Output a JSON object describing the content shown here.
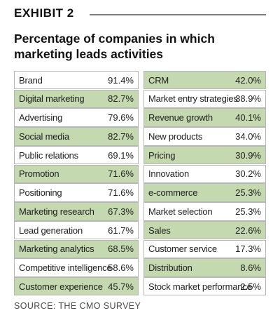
{
  "exhibit": "EXHIBIT 2",
  "source": "SOURCE: THE CMO SURVEY",
  "colors": {
    "shaded_row": "#c5d9b0",
    "border": "#b7b7b7",
    "rule": "#7d7d7d"
  },
  "chart_data": {
    "type": "table",
    "title": "Percentage of companies in which marketing leads activities",
    "columns": [
      {
        "rows": [
          {
            "label": "Brand",
            "value": "91.4%",
            "shaded": false
          },
          {
            "label": "Digital marketing",
            "value": "82.7%",
            "shaded": true
          },
          {
            "label": "Advertising",
            "value": "79.6%",
            "shaded": false
          },
          {
            "label": "Social media",
            "value": "82.7%",
            "shaded": true
          },
          {
            "label": "Public relations",
            "value": "69.1%",
            "shaded": false
          },
          {
            "label": "Promotion",
            "value": "71.6%",
            "shaded": true
          },
          {
            "label": "Positioning",
            "value": "71.6%",
            "shaded": false
          },
          {
            "label": "Marketing research",
            "value": "67.3%",
            "shaded": true
          },
          {
            "label": "Lead generation",
            "value": "61.7%",
            "shaded": false
          },
          {
            "label": "Marketing analytics",
            "value": "68.5%",
            "shaded": true
          },
          {
            "label": "Competitive intelligence",
            "value": "58.6%",
            "shaded": false
          },
          {
            "label": "Customer experience",
            "value": "45.7%",
            "shaded": true
          }
        ]
      },
      {
        "rows": [
          {
            "label": "CRM",
            "value": "42.0%",
            "shaded": true
          },
          {
            "label": "Market entry strategies",
            "value": "38.9%",
            "shaded": false
          },
          {
            "label": "Revenue growth",
            "value": "40.1%",
            "shaded": true
          },
          {
            "label": "New products",
            "value": "34.0%",
            "shaded": false
          },
          {
            "label": "Pricing",
            "value": "30.9%",
            "shaded": true
          },
          {
            "label": "Innovation",
            "value": "30.2%",
            "shaded": false
          },
          {
            "label": "e-commerce",
            "value": "25.3%",
            "shaded": true
          },
          {
            "label": "Market selection",
            "value": "25.3%",
            "shaded": false
          },
          {
            "label": "Sales",
            "value": "22.6%",
            "shaded": true
          },
          {
            "label": "Customer service",
            "value": "17.3%",
            "shaded": false
          },
          {
            "label": "Distribution",
            "value": "8.6%",
            "shaded": true
          },
          {
            "label": "Stock market performance",
            "value": "2.5%",
            "shaded": false
          }
        ]
      }
    ]
  }
}
